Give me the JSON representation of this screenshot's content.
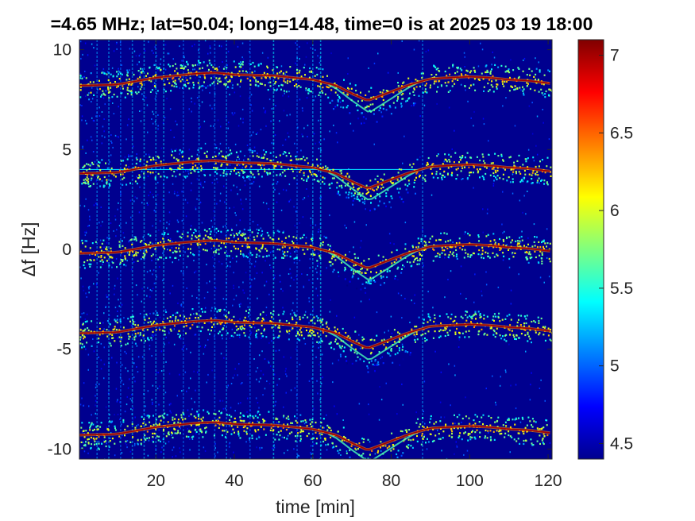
{
  "chart_data": {
    "type": "heatmap",
    "title": "=4.65 MHz;  lat=50.04; long=14.48, time=0 is at 2025 03 19 18:00",
    "xlabel": "time [min]",
    "ylabel": "Δf [Hz]",
    "xlim": [
      0.5,
      121
    ],
    "ylim": [
      -10.5,
      10.5
    ],
    "x_ticks": [
      20,
      40,
      60,
      80,
      100,
      120
    ],
    "x_tick_labels": [
      "20",
      "40",
      "60",
      "80",
      "100",
      "120"
    ],
    "y_ticks": [
      -10,
      -5,
      0,
      5,
      10
    ],
    "y_tick_labels": [
      "-10",
      "-5",
      "0",
      "5",
      "10"
    ],
    "colorbar": {
      "clim": [
        4.4,
        7.1
      ],
      "ticks": [
        4.5,
        5,
        5.5,
        6,
        6.5,
        7
      ],
      "tick_labels": [
        "4.5",
        "5",
        "5.5",
        "6",
        "6.5",
        "7"
      ],
      "colormap": "jet"
    },
    "grid": false,
    "traces": [
      {
        "offset": 8.2,
        "label": "trace near +8 Hz"
      },
      {
        "offset": 3.8,
        "label": "trace near +4 Hz"
      },
      {
        "offset": -0.2,
        "label": "trace near 0 Hz"
      },
      {
        "offset": -4.2,
        "label": "trace near -4 Hz"
      },
      {
        "offset": -9.3,
        "label": "trace near -9 Hz"
      }
    ],
    "trace_shape_x": [
      0,
      10,
      20,
      30,
      35,
      40,
      50,
      60,
      66,
      70,
      74,
      78,
      84,
      90,
      100,
      105,
      110,
      115,
      121
    ],
    "trace_shape_dy": [
      0,
      0.05,
      0.4,
      0.6,
      0.65,
      0.55,
      0.5,
      0.3,
      0.0,
      -0.4,
      -0.75,
      -0.45,
      0.0,
      0.35,
      0.45,
      0.4,
      0.3,
      0.25,
      0.1
    ],
    "vertical_streaks_x": [
      5,
      8,
      11,
      14,
      17,
      20,
      22,
      27,
      31,
      35,
      38,
      44,
      50,
      56,
      60,
      62,
      88
    ],
    "noise_band_end_x": 62,
    "horizontal_line": {
      "y": 4.0,
      "x_start": 0.5,
      "x_end": 88
    }
  }
}
